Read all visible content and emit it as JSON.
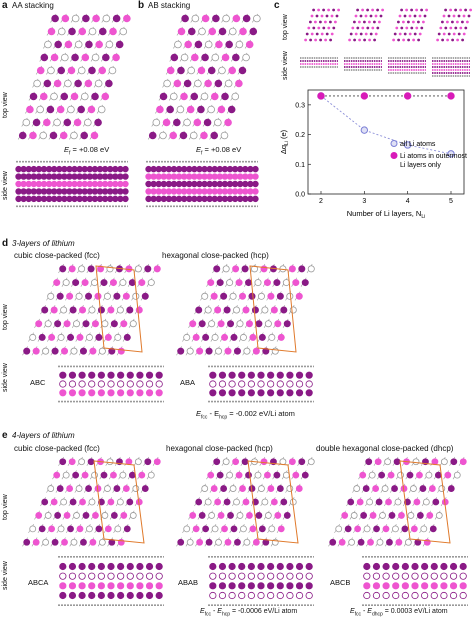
{
  "panels": {
    "a": {
      "letter": "a",
      "title": "AA stacking",
      "energy": "E",
      "energy_sub": "f",
      "energy_val": "= +0.08 eV",
      "top_view": "top view",
      "side_view": "side view"
    },
    "b": {
      "letter": "b",
      "title": "AB stacking",
      "energy": "E",
      "energy_sub": "f",
      "energy_val": "= +0.08 eV"
    },
    "c": {
      "letter": "c",
      "top_view": "top view",
      "side_view": "side view"
    },
    "d": {
      "letter": "d",
      "title": "3-layers of lithium",
      "fcc": "cubic close-packed (fcc)",
      "hcp": "hexagonal close-packed (hcp)",
      "top_view": "top view",
      "side_view": "side view",
      "abc": "ABC",
      "aba": "ABA",
      "diff_lhs": "E",
      "diff_sub1": "fcc",
      "diff_mid": " - E",
      "diff_sub2": "hcp",
      "diff_val": " = -0.002 eV/Li atom"
    },
    "e": {
      "letter": "e",
      "title": "4-layers of lithium",
      "fcc": "cubic close-packed (fcc)",
      "hcp": "hexagonal close-packed (hcp)",
      "dhcp": "double hexagonal close-packed (dhcp)",
      "top_view": "top view",
      "side_view": "side view",
      "abca": "ABCA",
      "abab": "ABAB",
      "abcb": "ABCB",
      "d1_sub1": "fcc",
      "d1_sub2": "hcp",
      "d1_val": " = -0.0006 eV/Li atom",
      "d2_sub1": "fcc",
      "d2_sub2": "dhcp",
      "d2_val": " = 0.0003 eV/Li atom"
    }
  },
  "chart_data": {
    "type": "scatter",
    "x_ticks": [
      "2",
      "3",
      "4",
      "5"
    ],
    "y_ticks": [
      "0.0",
      "0.1",
      "0.2",
      "0.3"
    ],
    "xlim": [
      1.7,
      5.3
    ],
    "ylim": [
      0,
      0.35
    ],
    "xlabel": "Number of Li layers, N",
    "xlabel_sub": "Li",
    "ylabel": "Δq",
    "ylabel_sub": "Li",
    "ylabel_unit": "(e)",
    "series": [
      {
        "name": "all Li atoms",
        "x": [
          2,
          3,
          4,
          5
        ],
        "values": [
          0.33,
          0.215,
          0.165,
          0.135
        ],
        "color": "#7b7fd6"
      },
      {
        "name": "Li atoms in outermost Li layers only",
        "x": [
          2,
          3,
          4,
          5
        ],
        "values": [
          0.33,
          0.33,
          0.33,
          0.33
        ],
        "color": "#d81bb8"
      }
    ],
    "legend_placement": "bottom-right"
  },
  "colors": {
    "li_dark": "#8a1a86",
    "li_pink": "#ee55d0",
    "li_light": "#f7a6e8",
    "c_grey": "#9a9a9a",
    "box": "#e07a2c"
  }
}
